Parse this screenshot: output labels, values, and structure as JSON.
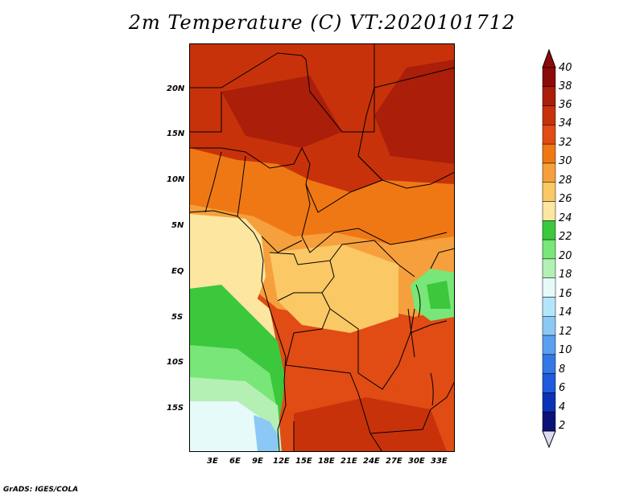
{
  "title": "2m Temperature (C) VT:2020101712",
  "footer": "GrADS: IGES/COLA",
  "map": {
    "lon_ticks": [
      "3E",
      "6E",
      "9E",
      "12E",
      "15E",
      "18E",
      "21E",
      "24E",
      "27E",
      "30E",
      "33E"
    ],
    "lat_ticks": [
      "20N",
      "15N",
      "10N",
      "5N",
      "EQ",
      "5S",
      "10S",
      "15S"
    ],
    "extent": {
      "lon_min": 0,
      "lon_max": 35,
      "lat_min": -20,
      "lat_max": 25
    }
  },
  "colorbar": {
    "labels": [
      "40",
      "38",
      "36",
      "34",
      "32",
      "30",
      "28",
      "26",
      "24",
      "22",
      "20",
      "18",
      "16",
      "14",
      "12",
      "10",
      "8",
      "6",
      "4",
      "2"
    ],
    "colors": [
      "#8c0a0a",
      "#aa1e0a",
      "#c8320a",
      "#e14b14",
      "#f07814",
      "#f5a03c",
      "#fac864",
      "#fde6a0",
      "#3cc83c",
      "#78e678",
      "#b4f0b4",
      "#e6fafa",
      "#b4e6fa",
      "#8cc8f5",
      "#5aa0f0",
      "#3278e6",
      "#1e5adc",
      "#0a32b4",
      "#0a1478",
      "#e1e1f5"
    ],
    "top_color": "#8c0a0a",
    "bottom_color": "#dcdcf0"
  }
}
